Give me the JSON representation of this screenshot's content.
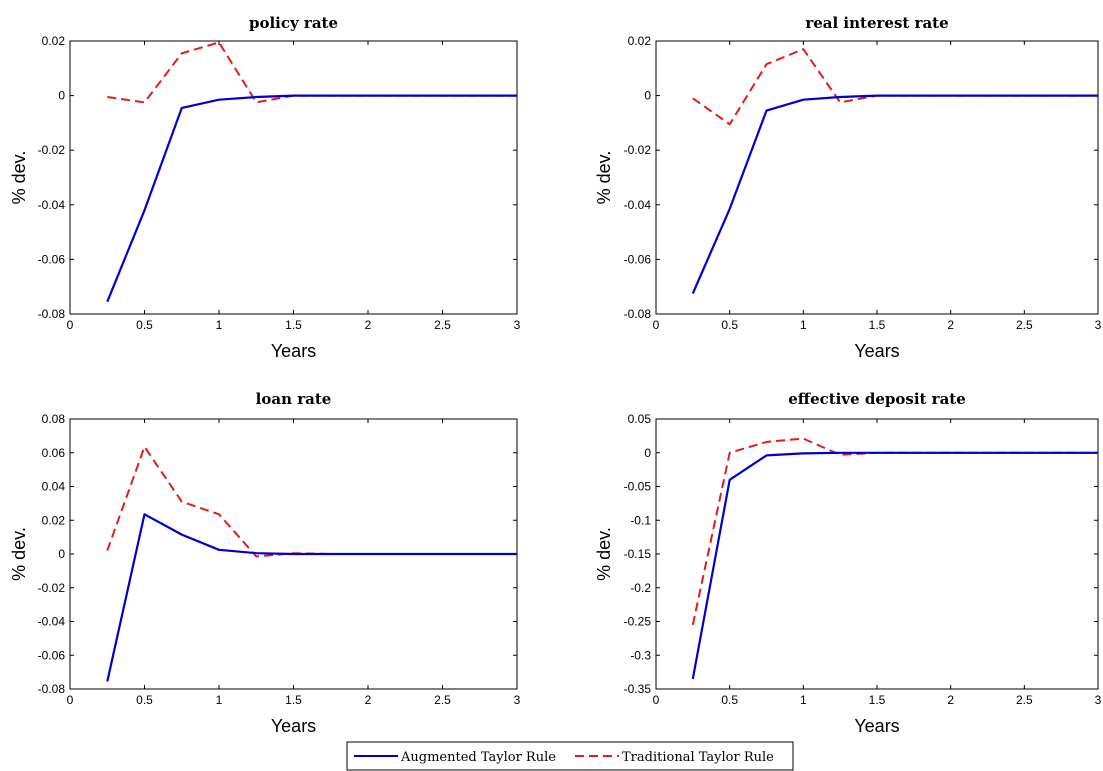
{
  "colors": {
    "augmented": "#0000cc",
    "traditional": "#e31a1c"
  },
  "legend": {
    "items": [
      {
        "label": "Augmented Taylor Rule",
        "style": "solid",
        "color": "#0000cc"
      },
      {
        "label": "Traditional Taylor Rule",
        "style": "dashed",
        "color": "#e31a1c"
      }
    ]
  },
  "chart_data": [
    {
      "type": "line",
      "title": "policy rate",
      "xlabel": "Years",
      "ylabel": "% dev.",
      "xlim": [
        0,
        3
      ],
      "ylim": [
        -0.08,
        0.02
      ],
      "xticks": [
        0,
        0.5,
        1,
        1.5,
        2,
        2.5,
        3
      ],
      "xtick_labels": [
        "0",
        "0.5",
        "1",
        "1.5",
        "2",
        "2.5",
        "3"
      ],
      "yticks": [
        -0.08,
        -0.06,
        -0.04,
        -0.02,
        0,
        0.02
      ],
      "ytick_labels": [
        "-0.08",
        "-0.06",
        "-0.04",
        "-0.02",
        "0",
        "0.02"
      ],
      "x": [
        0.25,
        0.5,
        0.75,
        1,
        1.25,
        1.5,
        1.75,
        2,
        2.25,
        2.5,
        2.75,
        3
      ],
      "series": [
        {
          "name": "Augmented Taylor Rule",
          "values": [
            -0.0755,
            -0.042,
            -0.0045,
            -0.0015,
            -0.0005,
            0,
            0,
            0,
            0,
            0,
            0,
            0
          ]
        },
        {
          "name": "Traditional Taylor Rule",
          "values": [
            -0.0005,
            -0.0025,
            0.0155,
            0.0195,
            -0.0025,
            0,
            0,
            0,
            0,
            0,
            0,
            0
          ]
        }
      ]
    },
    {
      "type": "line",
      "title": "real interest rate",
      "xlabel": "Years",
      "ylabel": "% dev.",
      "xlim": [
        0,
        3
      ],
      "ylim": [
        -0.08,
        0.02
      ],
      "xticks": [
        0,
        0.5,
        1,
        1.5,
        2,
        2.5,
        3
      ],
      "xtick_labels": [
        "0",
        "0.5",
        "1",
        "1.5",
        "2",
        "2.5",
        "3"
      ],
      "yticks": [
        -0.08,
        -0.06,
        -0.04,
        -0.02,
        0,
        0.02
      ],
      "ytick_labels": [
        "-0.08",
        "-0.06",
        "-0.04",
        "-0.02",
        "0",
        "0.02"
      ],
      "x": [
        0.25,
        0.5,
        0.75,
        1,
        1.25,
        1.5,
        1.75,
        2,
        2.25,
        2.5,
        2.75,
        3
      ],
      "series": [
        {
          "name": "Augmented Taylor Rule",
          "values": [
            -0.0725,
            -0.0415,
            -0.0055,
            -0.0015,
            -0.0005,
            0,
            0,
            0,
            0,
            0,
            0,
            0
          ]
        },
        {
          "name": "Traditional Taylor Rule",
          "values": [
            -0.001,
            -0.0105,
            0.0115,
            0.017,
            -0.0025,
            0,
            0,
            0,
            0,
            0,
            0,
            0
          ]
        }
      ]
    },
    {
      "type": "line",
      "title": "loan rate",
      "xlabel": "Years",
      "ylabel": "% dev.",
      "xlim": [
        0,
        3
      ],
      "ylim": [
        -0.08,
        0.08
      ],
      "xticks": [
        0,
        0.5,
        1,
        1.5,
        2,
        2.5,
        3
      ],
      "xtick_labels": [
        "0",
        "0.5",
        "1",
        "1.5",
        "2",
        "2.5",
        "3"
      ],
      "yticks": [
        -0.08,
        -0.06,
        -0.04,
        -0.02,
        0,
        0.02,
        0.04,
        0.06,
        0.08
      ],
      "ytick_labels": [
        "-0.08",
        "-0.06",
        "-0.04",
        "-0.02",
        "0",
        "0.02",
        "0.04",
        "0.06",
        "0.08"
      ],
      "x": [
        0.25,
        0.5,
        0.75,
        1,
        1.25,
        1.5,
        1.75,
        2,
        2.25,
        2.5,
        2.75,
        3
      ],
      "series": [
        {
          "name": "Augmented Taylor Rule",
          "values": [
            -0.0755,
            0.0235,
            0.0115,
            0.0025,
            0.0005,
            0,
            0,
            0,
            0,
            0,
            0,
            0
          ]
        },
        {
          "name": "Traditional Taylor Rule",
          "values": [
            0.002,
            0.0635,
            0.031,
            0.0235,
            -0.0015,
            0.0005,
            0,
            0,
            0,
            0,
            0,
            0
          ]
        }
      ]
    },
    {
      "type": "line",
      "title": "effective deposit rate",
      "xlabel": "Years",
      "ylabel": "% dev.",
      "xlim": [
        0,
        3
      ],
      "ylim": [
        -0.35,
        0.05
      ],
      "xticks": [
        0,
        0.5,
        1,
        1.5,
        2,
        2.5,
        3
      ],
      "xtick_labels": [
        "0",
        "0.5",
        "1",
        "1.5",
        "2",
        "2.5",
        "3"
      ],
      "yticks": [
        -0.35,
        -0.3,
        -0.25,
        -0.2,
        -0.15,
        -0.1,
        -0.05,
        0,
        0.05
      ],
      "ytick_labels": [
        "-0.35",
        "-0.3",
        "-0.25",
        "-0.2",
        "-0.15",
        "-0.1",
        "-0.05",
        "0",
        "0.05"
      ],
      "x": [
        0.25,
        0.5,
        0.75,
        1,
        1.25,
        1.5,
        1.75,
        2,
        2.25,
        2.5,
        2.75,
        3
      ],
      "series": [
        {
          "name": "Augmented Taylor Rule",
          "values": [
            -0.335,
            -0.04,
            -0.004,
            -0.001,
            0,
            0,
            0,
            0,
            0,
            0,
            0,
            0
          ]
        },
        {
          "name": "Traditional Taylor Rule",
          "values": [
            -0.255,
            0,
            0.016,
            0.021,
            -0.003,
            0,
            0,
            0,
            0,
            0,
            0,
            0
          ]
        }
      ]
    }
  ]
}
